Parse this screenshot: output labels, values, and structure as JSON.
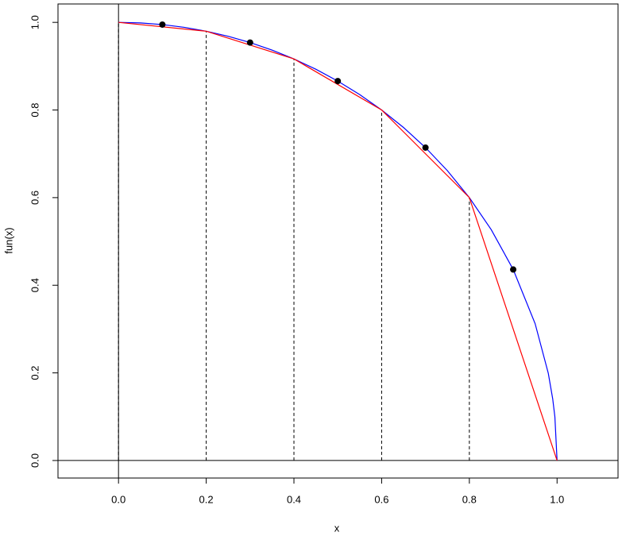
{
  "chart_data": {
    "type": "line",
    "xlabel": "x",
    "ylabel": "fun(x)",
    "xlim": [
      -0.138,
      1.139
    ],
    "ylim": [
      -0.04,
      1.042
    ],
    "xticks": [
      {
        "value": 0,
        "label": "0.0"
      },
      0.2,
      0.4,
      0.6,
      0.8,
      {
        "value": 1,
        "label": "1.0"
      }
    ],
    "yticks": [
      {
        "value": 0,
        "label": "0.0"
      },
      0.2,
      0.4,
      0.6,
      0.8,
      {
        "value": 1,
        "label": "1.0"
      }
    ],
    "hlines": [
      0
    ],
    "vlines": [
      0
    ],
    "series": [
      {
        "style": "line",
        "color": "#0000ff",
        "x": [
          0,
          0.05,
          0.1,
          0.15,
          0.2,
          0.25,
          0.3,
          0.35,
          0.4,
          0.45,
          0.5,
          0.55,
          0.6,
          0.65,
          0.7,
          0.75,
          0.8,
          0.85,
          0.9,
          0.95,
          0.98,
          0.99,
          0.995,
          1
        ],
        "values": [
          1,
          0.99875,
          0.99499,
          0.98869,
          0.9798,
          0.96825,
          0.95394,
          0.93675,
          0.91652,
          0.89303,
          0.86603,
          0.83516,
          0.8,
          0.75993,
          0.71414,
          0.66144,
          0.6,
          0.52678,
          0.43589,
          0.31225,
          0.199,
          0.14107,
          0.09987,
          0
        ]
      },
      {
        "style": "line-dropped",
        "color": "#ff0000",
        "x": [
          0,
          0.2,
          0.4,
          0.6,
          0.8,
          1
        ],
        "values": [
          1,
          0.9798,
          0.91652,
          0.8,
          0.6,
          0
        ]
      },
      {
        "style": "points",
        "color": "#000000",
        "x": [
          0.1,
          0.3,
          0.5,
          0.7,
          0.9
        ],
        "values": [
          0.99499,
          0.95394,
          0.86603,
          0.71414,
          0.43589
        ]
      }
    ]
  }
}
